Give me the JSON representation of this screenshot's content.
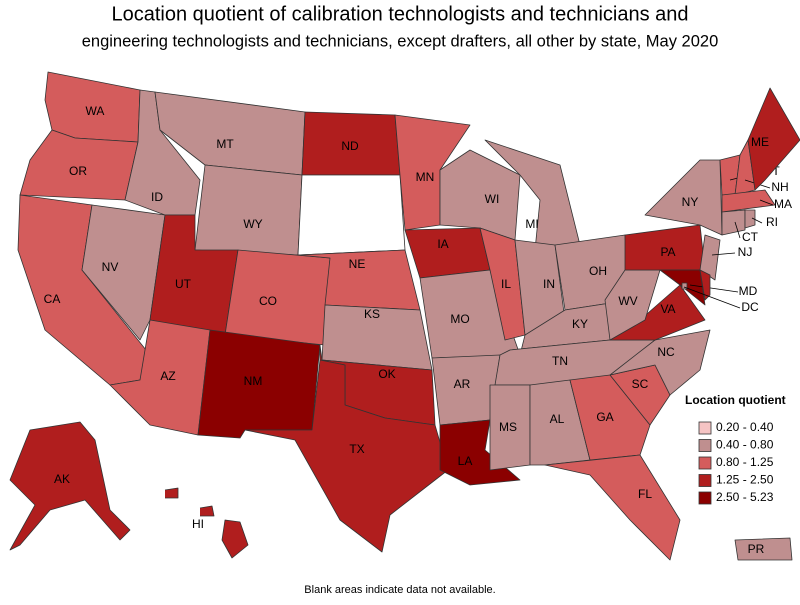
{
  "header": {
    "title_line1": "Location quotient of calibration technologists and technicians and",
    "title_line2": "engineering technologists and technicians, except drafters, all other by state, May 2020"
  },
  "legend": {
    "title": "Location quotient",
    "items": [
      {
        "label": "0.20 - 0.40",
        "color": "#f5c4c4"
      },
      {
        "label": "0.40 - 0.80",
        "color": "#bf8f8f"
      },
      {
        "label": "0.80 - 1.25",
        "color": "#d45c5c"
      },
      {
        "label": "1.25 - 2.50",
        "color": "#b01e1e"
      },
      {
        "label": "2.50 - 5.23",
        "color": "#8b0000"
      }
    ]
  },
  "states": [
    {
      "abbr": "WA",
      "class": "0.80 - 1.25"
    },
    {
      "abbr": "OR",
      "class": "0.80 - 1.25"
    },
    {
      "abbr": "CA",
      "class": "0.80 - 1.25"
    },
    {
      "abbr": "NV",
      "class": "0.40 - 0.80"
    },
    {
      "abbr": "ID",
      "class": "0.40 - 0.80"
    },
    {
      "abbr": "MT",
      "class": "0.40 - 0.80"
    },
    {
      "abbr": "WY",
      "class": "0.40 - 0.80"
    },
    {
      "abbr": "UT",
      "class": "1.25 - 2.50"
    },
    {
      "abbr": "AZ",
      "class": "0.80 - 1.25"
    },
    {
      "abbr": "CO",
      "class": "0.80 - 1.25"
    },
    {
      "abbr": "NM",
      "class": "2.50 - 5.23"
    },
    {
      "abbr": "ND",
      "class": "1.25 - 2.50"
    },
    {
      "class": null
    },
    {
      "abbr": "NE",
      "class": "0.80 - 1.25"
    },
    {
      "abbr": "KS",
      "class": "0.40 - 0.80"
    },
    {
      "abbr": "OK",
      "class": "1.25 - 2.50"
    },
    {
      "abbr": "TX",
      "class": "1.25 - 2.50"
    },
    {
      "abbr": "MN",
      "class": "0.80 - 1.25"
    },
    {
      "abbr": "IA",
      "class": "1.25 - 2.50"
    },
    {
      "abbr": "MO",
      "class": "0.40 - 0.80"
    },
    {
      "abbr": "AR",
      "class": "0.40 - 0.80"
    },
    {
      "abbr": "LA",
      "class": "2.50 - 5.23"
    },
    {
      "abbr": "WI",
      "class": "0.40 - 0.80"
    },
    {
      "abbr": "IL",
      "class": "0.80 - 1.25"
    },
    {
      "abbr": "MI",
      "class": "0.40 - 0.80"
    },
    {
      "abbr": "IN",
      "class": "0.40 - 0.80"
    },
    {
      "abbr": "OH",
      "class": "0.40 - 0.80"
    },
    {
      "abbr": "KY",
      "class": "0.40 - 0.80"
    },
    {
      "abbr": "TN",
      "class": "0.40 - 0.80"
    },
    {
      "abbr": "MS",
      "class": "0.40 - 0.80"
    },
    {
      "abbr": "AL",
      "class": "0.40 - 0.80"
    },
    {
      "abbr": "GA",
      "class": "0.80 - 1.25"
    },
    {
      "abbr": "FL",
      "class": "0.80 - 1.25"
    },
    {
      "abbr": "SC",
      "class": "0.80 - 1.25"
    },
    {
      "abbr": "NC",
      "class": "0.40 - 0.80"
    },
    {
      "abbr": "VA",
      "class": "1.25 - 2.50"
    },
    {
      "abbr": "WV",
      "class": "0.40 - 0.80"
    },
    {
      "abbr": "PA",
      "class": "1.25 - 2.50"
    },
    {
      "abbr": "NY",
      "class": "0.40 - 0.80"
    },
    {
      "abbr": "NJ",
      "class": "0.40 - 0.80"
    },
    {
      "abbr": "MD",
      "class": "2.50 - 5.23"
    },
    {
      "class": "1.25 - 2.50"
    },
    {
      "abbr": "DC",
      "class": "0.40 - 0.80"
    },
    {
      "abbr": "VT",
      "class": "0.80 - 1.25"
    },
    {
      "abbr": "NH",
      "class": "0.80 - 1.25"
    },
    {
      "abbr": "ME",
      "class": "1.25 - 2.50"
    },
    {
      "abbr": "MA",
      "class": "0.80 - 1.25"
    },
    {
      "abbr": "CT",
      "class": "0.40 - 0.80"
    },
    {
      "abbr": "RI",
      "class": "0.40 - 0.80"
    },
    {
      "abbr": "AK",
      "class": "1.25 - 2.50"
    },
    {
      "abbr": "HI",
      "class": "1.25 - 2.50"
    },
    {
      "abbr": "PR",
      "class": "0.40 - 0.80"
    }
  ],
  "note": "Blank areas indicate data not available."
}
